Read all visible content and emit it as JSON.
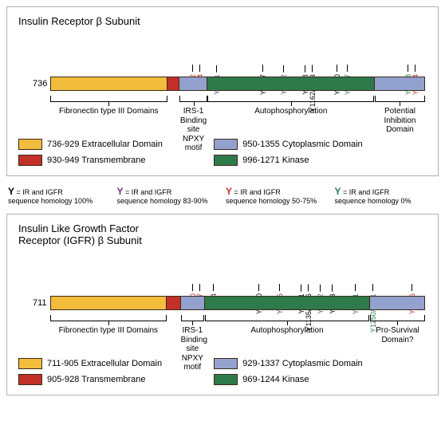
{
  "colors": {
    "extracellular": "#f2bc3d",
    "transmembrane": "#c23028",
    "cytoplasmic": "#93a1cf",
    "kinase": "#2e7a4b",
    "tick100": "#000000",
    "tick8390": "#6a317e",
    "tick5075": "#c23028",
    "tick0": "#2e7a4b"
  },
  "panel1": {
    "title": "Insulin Receptor β Subunit",
    "start": 736,
    "end": 1355,
    "segs": [
      {
        "from": 736,
        "to": 929,
        "colorKey": "extracellular"
      },
      {
        "from": 930,
        "to": 949,
        "colorKey": "transmembrane"
      },
      {
        "from": 950,
        "to": 995,
        "colorKey": "cytoplasmic"
      },
      {
        "from": 996,
        "to": 1271,
        "colorKey": "kinase"
      },
      {
        "from": 1272,
        "to": 1355,
        "colorKey": "cytoplasmic"
      }
    ],
    "ticks": [
      {
        "label": "Y972",
        "pos": 972,
        "homo": "5075"
      },
      {
        "label": "Y984",
        "pos": 984,
        "homo": "5075"
      },
      {
        "label": "Y1011",
        "pos": 1011,
        "homo": "8390"
      },
      {
        "label": "Y1087",
        "pos": 1087,
        "homo": "100"
      },
      {
        "label": "Y1122",
        "pos": 1122,
        "homo": "8390"
      },
      {
        "label": "Y1158",
        "pos": 1158,
        "homo": "100"
      },
      {
        "label": "Y1162/1163",
        "pos": 1162,
        "homo": "100"
      },
      {
        "label": "Y1210",
        "pos": 1210,
        "homo": "100"
      },
      {
        "label": "Y1227",
        "pos": 1227,
        "homo": "0"
      },
      {
        "label": "Y1328",
        "pos": 1328,
        "homo": "0"
      },
      {
        "label": "Y1334",
        "pos": 1334,
        "homo": "5075"
      }
    ],
    "brackets": [
      {
        "from": 736,
        "to": 929,
        "label": "Fibronectin type III Domains"
      },
      {
        "from": 950,
        "to": 995,
        "label": "IRS-1\nBinding site\nNPXY motif"
      },
      {
        "from": 996,
        "to": 1271,
        "label": "Autophosphorylation"
      },
      {
        "from": 1272,
        "to": 1355,
        "label": "Potential\nInhibition\nDomain"
      }
    ],
    "legend": [
      {
        "text": "736-929 Extracellular Domain",
        "colorKey": "extracellular"
      },
      {
        "text": "950-1355 Cytoplasmic Domain",
        "colorKey": "cytoplasmic"
      },
      {
        "text": "930-949 Transmembrane",
        "colorKey": "transmembrane"
      },
      {
        "text": "996-1271 Kinase",
        "colorKey": "kinase"
      }
    ]
  },
  "panel2": {
    "title": "Insulin Like Growth Factor\nReceptor (IGFR) β Subunit",
    "start": 711,
    "end": 1337,
    "segs": [
      {
        "from": 711,
        "to": 905,
        "colorKey": "extracellular"
      },
      {
        "from": 905,
        "to": 928,
        "colorKey": "transmembrane"
      },
      {
        "from": 929,
        "to": 968,
        "colorKey": "cytoplasmic"
      },
      {
        "from": 969,
        "to": 1244,
        "colorKey": "kinase"
      },
      {
        "from": 1245,
        "to": 1337,
        "colorKey": "cytoplasmic"
      }
    ],
    "ticks": [
      {
        "label": "Y950",
        "pos": 950,
        "homo": "5075"
      },
      {
        "label": "Y957",
        "pos": 957,
        "homo": "5075"
      },
      {
        "label": "Y984",
        "pos": 984,
        "homo": "8390"
      },
      {
        "label": "Y1060",
        "pos": 1060,
        "homo": "100"
      },
      {
        "label": "Y1095",
        "pos": 1095,
        "homo": "8390"
      },
      {
        "label": "Y1131",
        "pos": 1131,
        "homo": "100"
      },
      {
        "label": "Y1135/1136",
        "pos": 1135,
        "homo": "100"
      },
      {
        "label": "Y1162",
        "pos": 1162,
        "homo": "0"
      },
      {
        "label": "Y1183",
        "pos": 1183,
        "homo": "100"
      },
      {
        "label": "Y1221",
        "pos": 1221,
        "homo": "0"
      },
      {
        "label": "Y1250/1251",
        "pos": 1250,
        "homo": "0"
      },
      {
        "label": "Y1316",
        "pos": 1316,
        "homo": "5075"
      }
    ],
    "brackets": [
      {
        "from": 711,
        "to": 905,
        "label": "Fibronectin type III Domains"
      },
      {
        "from": 929,
        "to": 968,
        "label": "IRS-1\nBinding site\nNPXY motif"
      },
      {
        "from": 969,
        "to": 1244,
        "label": "Autophosphorylation"
      },
      {
        "from": 1245,
        "to": 1337,
        "label": "Pro-Survival\nDomain?"
      }
    ],
    "legend": [
      {
        "text": "711-905 Extracellular Domain",
        "colorKey": "extracellular"
      },
      {
        "text": "929-1337 Cytoplasmic Domain",
        "colorKey": "cytoplasmic"
      },
      {
        "text": "905-928 Transmembrane",
        "colorKey": "transmembrane"
      },
      {
        "text": "969-1244 Kinase",
        "colorKey": "kinase"
      }
    ]
  },
  "homologyKey": [
    {
      "colorKey": "tick100",
      "text": " = IR and IGFR\nsequence homology 100%"
    },
    {
      "colorKey": "tick8390",
      "text": " = IR and IGFR\nsequence homology 83-90%"
    },
    {
      "colorKey": "tick5075",
      "text": " = IR and IGFR\nsequence homology 50-75%"
    },
    {
      "colorKey": "tick0",
      "text": " = IR and IGFR\nsequence homology 0%"
    }
  ]
}
